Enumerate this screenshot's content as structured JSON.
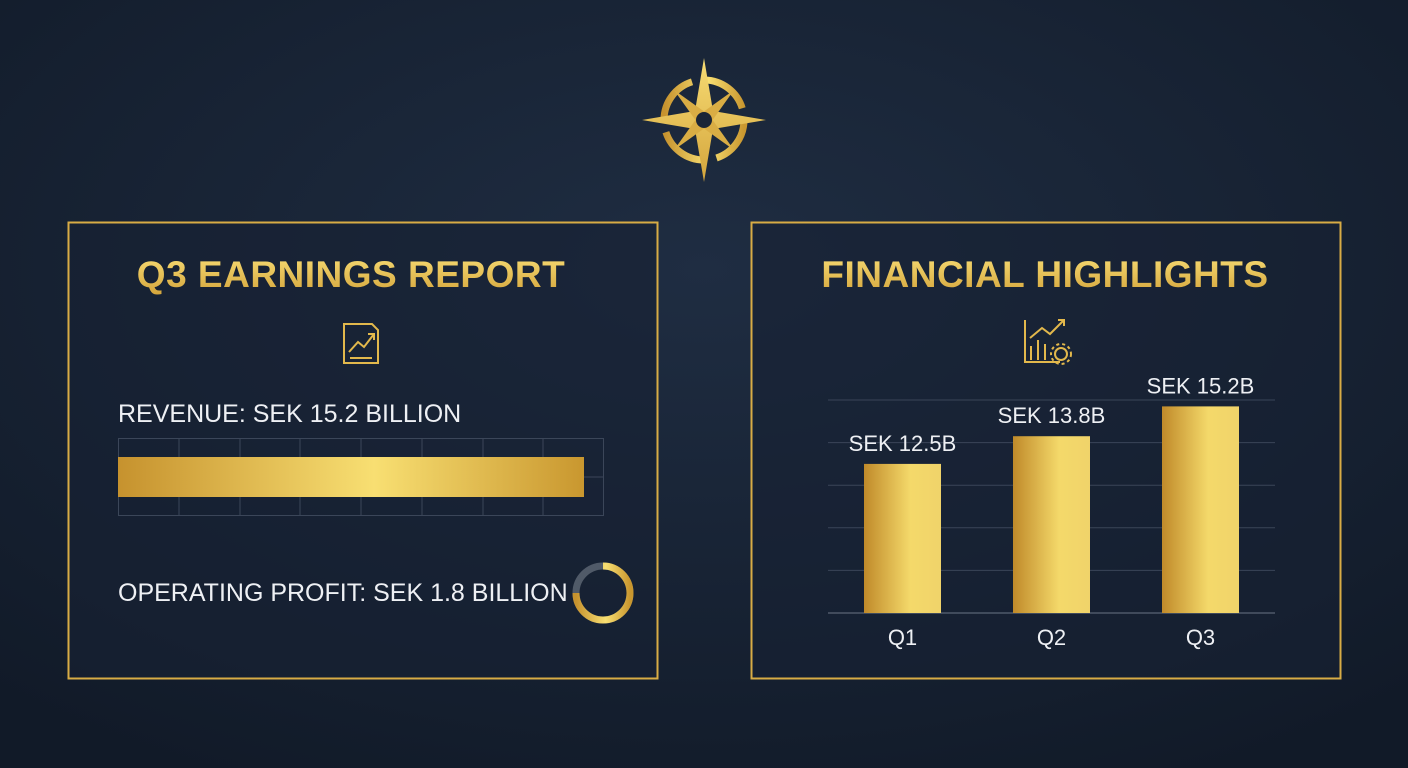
{
  "left_panel": {
    "title": "Q3 EARNINGS REPORT",
    "revenue": "REVENUE: SEK 15.2 BILLION",
    "operating_profit": "OPERATING PROFIT: SEK 1.8 BILLION"
  },
  "chart_data": {
    "type": "bar",
    "title": "FINANCIAL HIGHLIGHTS",
    "categories": [
      "Q1",
      "Q2",
      "Q3"
    ],
    "values": [
      12.5,
      13.8,
      15.2
    ],
    "value_labels": [
      "SEK 12.5B",
      "SEK 13.8B",
      "SEK 15.2B"
    ],
    "ylim": [
      5.5,
      15.5
    ],
    "grid": true,
    "color": "#f4d96a"
  }
}
